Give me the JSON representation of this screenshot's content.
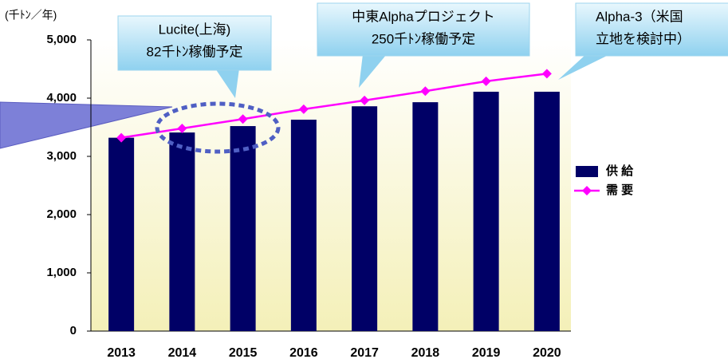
{
  "chart_data": {
    "type": "bar",
    "y_label": "(千ﾄﾝ／年)",
    "categories": [
      "2013",
      "2014",
      "2015",
      "2016",
      "2017",
      "2018",
      "2019",
      "2020"
    ],
    "series": [
      {
        "name": "供 給",
        "type": "bar",
        "color": "#000066",
        "values": [
          3320,
          3410,
          3520,
          3630,
          3860,
          3930,
          4110,
          4110
        ]
      },
      {
        "name": "需 要",
        "type": "line",
        "color": "#ff00ff",
        "values": [
          3320,
          3480,
          3640,
          3810,
          3960,
          4120,
          4290,
          4420
        ]
      }
    ],
    "ylim": [
      0,
      5000
    ],
    "yticks": [
      0,
      {
        "value": 1000,
        "label": "1,000"
      },
      {
        "value": 2000,
        "label": "2,000"
      },
      {
        "value": 3000,
        "label": "3,000"
      },
      {
        "value": 4000,
        "label": "4,000"
      },
      {
        "value": 5000,
        "label": "5,000"
      }
    ],
    "legend": "right",
    "annotations": [
      {
        "lines": [
          "Lucite(上海)",
          "82千ﾄﾝ稼働予定"
        ]
      },
      {
        "lines": [
          "中東Alphaプロジェクト",
          "250千ﾄﾝ稼働予定"
        ]
      },
      {
        "lines": [
          "Alpha-3（米国",
          "立地を検討中）"
        ]
      }
    ]
  }
}
